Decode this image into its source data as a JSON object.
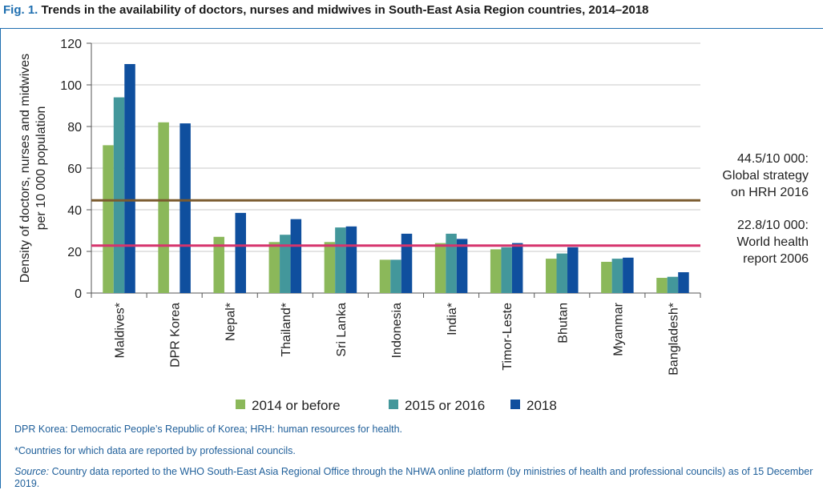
{
  "figure": {
    "number": "Fig. 1.",
    "title": "Trends in the availability of doctors, nurses and midwives in South-East Asia Region countries, 2014–2018"
  },
  "notes": {
    "abbrev": "DPR Korea: Democratic People’s Republic of Korea; HRH: human resources for health.",
    "asterisk": "*Countries for which data are reported by professional councils.",
    "source_label": "Source:",
    "source_text": "Country data reported to the WHO South-East Asia Regional Office through the NHWA online platform (by ministries of health and professional councils) as of 15 December 2019."
  },
  "chart_data": {
    "type": "bar",
    "ylabel_line1": "Density of doctors, nurses and midwives",
    "ylabel_line2": "per 10 000 population",
    "ylim": [
      0,
      120
    ],
    "yticks": [
      0,
      20,
      40,
      60,
      80,
      100,
      120
    ],
    "grid": true,
    "categories": [
      "Maldives*",
      "DPR Korea",
      "Nepal*",
      "Thailand*",
      "Sri Lanka",
      "Indonesia",
      "India*",
      "Timor-Leste",
      "Bhutan",
      "Myanmar",
      "Bangladesh*"
    ],
    "series": [
      {
        "name": "2014 or before",
        "color": "#8bb85a",
        "values": [
          71,
          82,
          27,
          24.5,
          24.5,
          16,
          24,
          21,
          16.5,
          15,
          7.3
        ]
      },
      {
        "name": "2015 or 2016",
        "color": "#43979b",
        "values": [
          94,
          null,
          null,
          28,
          31.5,
          16,
          28.5,
          22,
          19,
          16.5,
          7.8
        ]
      },
      {
        "name": "2018",
        "color": "#0f4f9e",
        "values": [
          110,
          81.5,
          38.5,
          35.5,
          32,
          28.5,
          26,
          24,
          22,
          17,
          10
        ]
      }
    ],
    "legend_position": "bottom",
    "reference_lines": [
      {
        "value": 44.5,
        "color": "#7a5a2e",
        "label_lines": [
          "44.5/10 000:",
          "Global strategy",
          "on HRH 2016"
        ]
      },
      {
        "value": 22.8,
        "color": "#d6336c",
        "label_lines": [
          "22.8/10 000:",
          "World health",
          "report 2006"
        ]
      }
    ]
  }
}
